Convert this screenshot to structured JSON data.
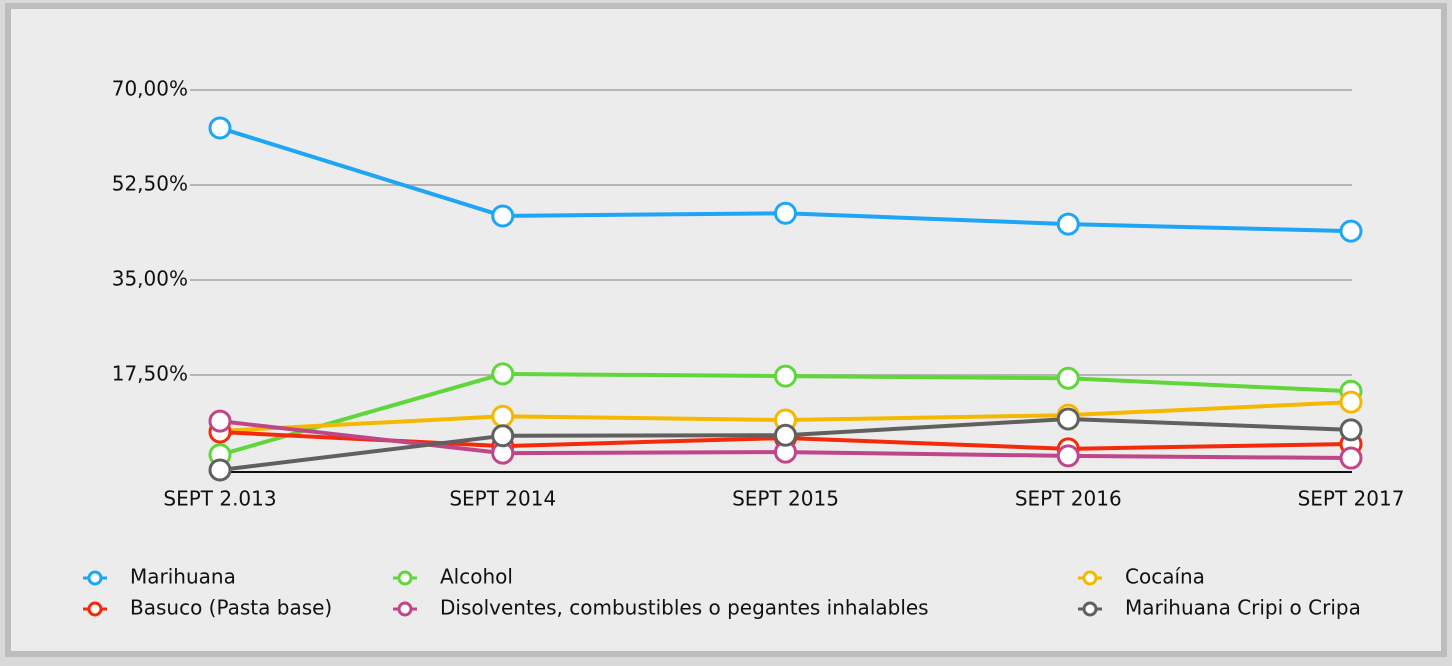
{
  "chart_data": {
    "type": "line",
    "categories": [
      "SEPT 2.013",
      "SEPT 2014",
      "SEPT 2015",
      "SEPT 2016",
      "SEPT 2017"
    ],
    "ylim": [
      0,
      70
    ],
    "yticks": [
      {
        "value": 17.5,
        "label": "17,50%"
      },
      {
        "value": 35,
        "label": "35,00%"
      },
      {
        "value": 52.5,
        "label": "52,50%"
      },
      {
        "value": 70,
        "label": "70,00%"
      }
    ],
    "grid": true,
    "legend": "bottom",
    "series": [
      {
        "name": "Marihuana",
        "color": "#1ea5f5",
        "values": [
          63.0,
          46.8,
          47.3,
          45.3,
          44.0
        ]
      },
      {
        "name": "Alcohol",
        "color": "#5fd63a",
        "values": [
          2.8,
          17.7,
          17.3,
          16.9,
          14.5
        ]
      },
      {
        "name": "Cocaína",
        "color": "#f5b800",
        "values": [
          7.2,
          9.9,
          9.2,
          10.1,
          12.5
        ]
      },
      {
        "name": "Basuco (Pasta base)",
        "color": "#f42a0a",
        "values": [
          7.0,
          4.4,
          5.9,
          3.9,
          4.8
        ]
      },
      {
        "name": "Disolventes, combustibles o pegantes inhalables",
        "color": "#c0468a",
        "values": [
          9.0,
          3.1,
          3.3,
          2.6,
          2.2
        ]
      },
      {
        "name": "Marihuana Cripi o Cripa",
        "color": "#606060",
        "values": [
          0,
          6.3,
          6.4,
          9.4,
          7.4
        ]
      }
    ]
  }
}
